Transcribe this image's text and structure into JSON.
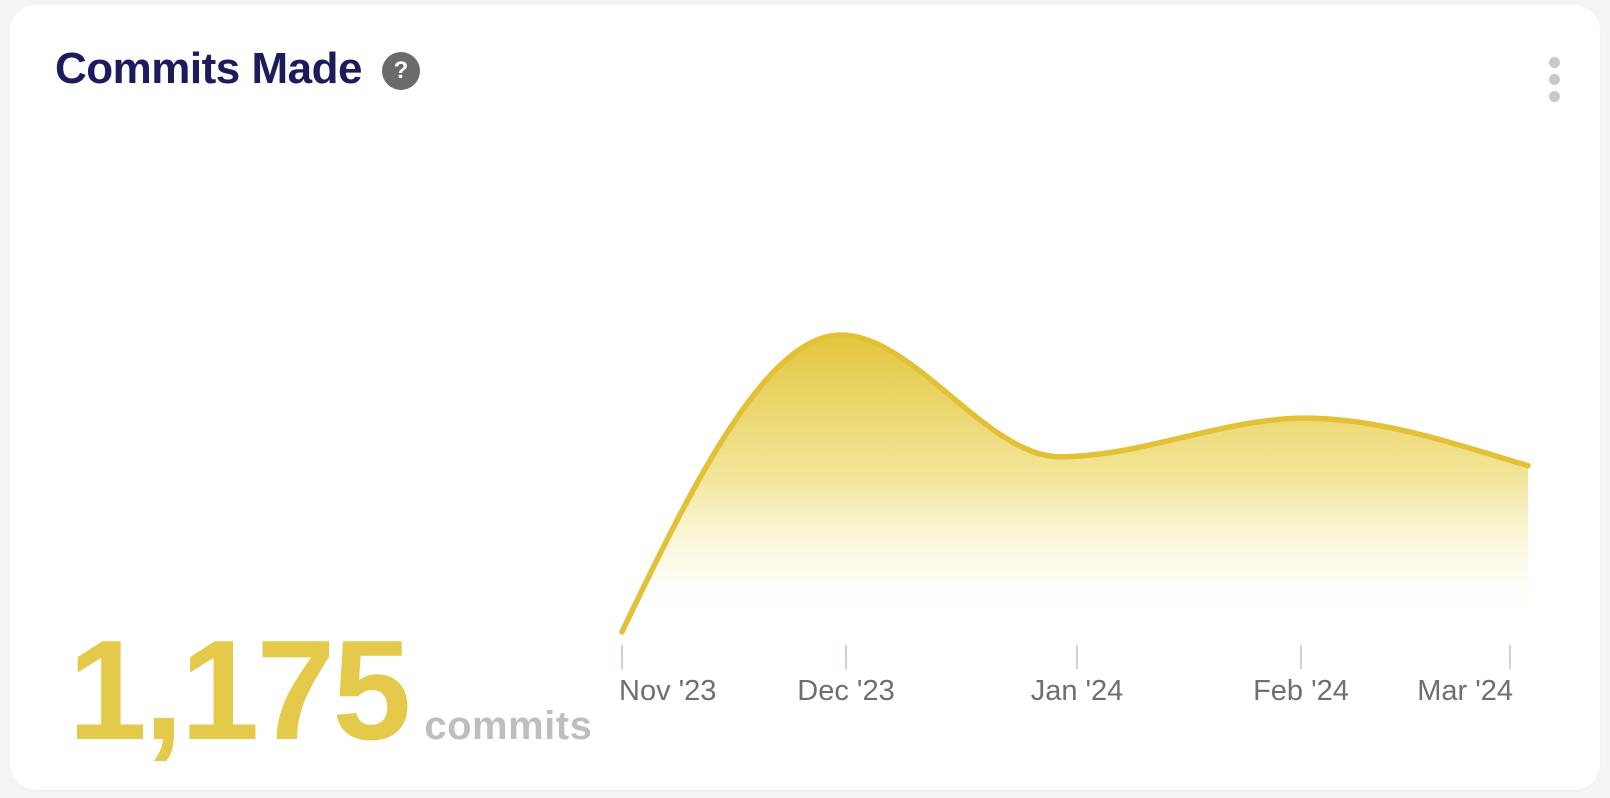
{
  "card": {
    "title": "Commits Made",
    "help_glyph": "?"
  },
  "metric": {
    "value": "1,175",
    "unit": "commits"
  },
  "chart_data": {
    "type": "area",
    "title": "Commits Made",
    "categories": [
      "Nov '23",
      "Dec '23",
      "Jan '24",
      "Feb '24",
      "Mar '24"
    ],
    "values": [
      0,
      100,
      59,
      72,
      56
    ],
    "xlabel": "",
    "ylabel": "",
    "ylim": [
      0,
      110
    ],
    "grid": false,
    "legend_position": "none",
    "y_axis_labels_shown": false,
    "summary_total": "1,175 commits",
    "line_color": "#e2c137",
    "fill_top_color": "#e3c63e",
    "fill_bottom_color": "#ffffff"
  },
  "colors": {
    "page_background": "#f4f4f6",
    "card_background": "#ffffff",
    "title_text": "#1b1b5e",
    "metric_value": "#e5c94b",
    "metric_unit": "#bebebe",
    "axis_label": "#6f6f6f",
    "axis_tick": "#c9d3e0",
    "help_icon_background": "#6b6b6b",
    "kebab_dot": "#c9c9c9"
  }
}
